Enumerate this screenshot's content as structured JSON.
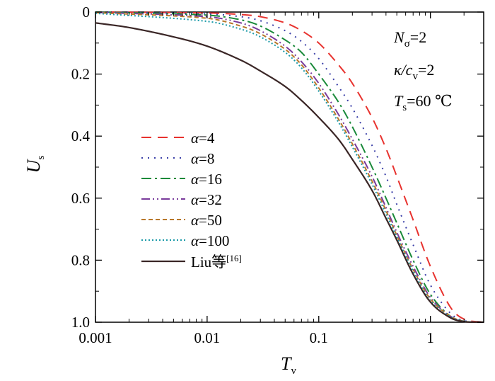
{
  "chart_data": {
    "type": "line",
    "xlabel": {
      "main": "T",
      "sub": "v"
    },
    "ylabel": {
      "main": "U",
      "sub": "s"
    },
    "xscale": "log",
    "yaxis_inverted": true,
    "xlim": [
      0.001,
      3
    ],
    "ylim": [
      0,
      1.0
    ],
    "x_ticks": [
      0.001,
      0.01,
      0.1,
      1
    ],
    "x_tick_labels": [
      "0.001",
      "0.01",
      "0.1",
      "1"
    ],
    "y_ticks": [
      0,
      0.2,
      0.4,
      0.6,
      0.8,
      1.0
    ],
    "y_tick_labels": [
      "0",
      "0.2",
      "0.4",
      "0.6",
      "0.8",
      "1.0"
    ],
    "grid": false,
    "legend_position": "center-left",
    "parameters": [
      {
        "main": "N",
        "sub": "σ",
        "rest": "=2"
      },
      {
        "main": "κ/c",
        "sub": "v",
        "rest": "=2"
      },
      {
        "main": "T",
        "sub": "s",
        "rest": "=60 ℃"
      }
    ],
    "series": [
      {
        "name": "α=4",
        "alpha_value": "=4",
        "color": "#e8322e",
        "dash": "14,9",
        "x": [
          0.001,
          0.01,
          0.02,
          0.03,
          0.05,
          0.07,
          0.1,
          0.15,
          0.2,
          0.3,
          0.4,
          0.5,
          0.7,
          1,
          1.5,
          2,
          3
        ],
        "y": [
          0,
          0.003,
          0.008,
          0.015,
          0.035,
          0.06,
          0.1,
          0.17,
          0.23,
          0.34,
          0.44,
          0.53,
          0.67,
          0.82,
          0.95,
          0.99,
          1.0
        ]
      },
      {
        "name": "α=8",
        "alpha_value": "=8",
        "color": "#3a3fa8",
        "dash": "2,7",
        "x": [
          0.001,
          0.01,
          0.02,
          0.03,
          0.05,
          0.07,
          0.1,
          0.15,
          0.2,
          0.3,
          0.4,
          0.5,
          0.7,
          1,
          1.5,
          2,
          3
        ],
        "y": [
          0,
          0.006,
          0.015,
          0.028,
          0.06,
          0.095,
          0.15,
          0.24,
          0.31,
          0.43,
          0.53,
          0.62,
          0.75,
          0.88,
          0.97,
          0.995,
          1.0
        ]
      },
      {
        "name": "α=16",
        "alpha_value": "=16",
        "color": "#1a8a3a",
        "dash": "14,5,3,5",
        "x": [
          0.001,
          0.01,
          0.02,
          0.03,
          0.05,
          0.07,
          0.1,
          0.15,
          0.2,
          0.3,
          0.4,
          0.5,
          0.7,
          1,
          1.5,
          2,
          3
        ],
        "y": [
          0,
          0.01,
          0.025,
          0.045,
          0.09,
          0.13,
          0.2,
          0.29,
          0.37,
          0.5,
          0.6,
          0.68,
          0.8,
          0.91,
          0.98,
          0.997,
          1.0
        ]
      },
      {
        "name": "α=32",
        "alpha_value": "=32",
        "color": "#7a3c9c",
        "dash": "12,4,2,4,2,4",
        "x": [
          0.001,
          0.01,
          0.02,
          0.03,
          0.05,
          0.07,
          0.1,
          0.15,
          0.2,
          0.3,
          0.4,
          0.5,
          0.7,
          1,
          1.5,
          2,
          3
        ],
        "y": [
          0.001,
          0.015,
          0.035,
          0.06,
          0.11,
          0.16,
          0.23,
          0.33,
          0.41,
          0.53,
          0.63,
          0.71,
          0.82,
          0.92,
          0.98,
          0.997,
          1.0
        ]
      },
      {
        "name": "α=50",
        "alpha_value": "=50",
        "color": "#b8782a",
        "dash": "6,4",
        "x": [
          0.001,
          0.01,
          0.02,
          0.03,
          0.05,
          0.07,
          0.1,
          0.15,
          0.2,
          0.3,
          0.4,
          0.5,
          0.7,
          1,
          1.5,
          2,
          3
        ],
        "y": [
          0.002,
          0.02,
          0.045,
          0.07,
          0.12,
          0.17,
          0.245,
          0.345,
          0.425,
          0.545,
          0.64,
          0.72,
          0.83,
          0.925,
          0.98,
          0.997,
          1.0
        ]
      },
      {
        "name": "α=100",
        "alpha_value": "=100",
        "color": "#1a9aa8",
        "dash": "2,3",
        "x": [
          0.001,
          0.01,
          0.02,
          0.03,
          0.05,
          0.07,
          0.1,
          0.15,
          0.2,
          0.3,
          0.4,
          0.5,
          0.7,
          1,
          1.5,
          2,
          3
        ],
        "y": [
          0.004,
          0.03,
          0.055,
          0.08,
          0.13,
          0.18,
          0.255,
          0.355,
          0.435,
          0.555,
          0.65,
          0.725,
          0.835,
          0.93,
          0.982,
          0.997,
          1.0
        ]
      },
      {
        "name": "Liu等[16]",
        "label_main": "Liu等",
        "label_sup": "[16]",
        "color": "#3a2626",
        "dash": "",
        "x": [
          0.001,
          0.002,
          0.005,
          0.01,
          0.02,
          0.03,
          0.05,
          0.07,
          0.1,
          0.15,
          0.2,
          0.3,
          0.4,
          0.5,
          0.7,
          1,
          1.5,
          2,
          3
        ],
        "y": [
          0.035,
          0.05,
          0.08,
          0.11,
          0.155,
          0.19,
          0.24,
          0.285,
          0.34,
          0.41,
          0.475,
          0.575,
          0.665,
          0.735,
          0.845,
          0.935,
          0.985,
          0.998,
          1.0
        ]
      }
    ]
  }
}
